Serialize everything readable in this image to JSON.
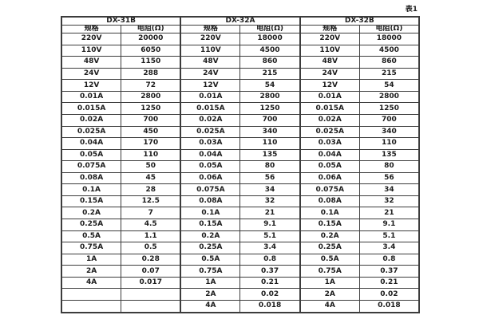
{
  "caption": "表1",
  "table": {
    "groups": [
      {
        "name": "DX-31B",
        "col1": "规格",
        "col2": "电阻(Ω)"
      },
      {
        "name": "DX-32A",
        "col1": "规格",
        "col2": "电阻(Ω)"
      },
      {
        "name": "DX-32B",
        "col1": "规格",
        "col2": "电阻(Ω)"
      }
    ],
    "rows": [
      [
        "220V",
        "20000",
        "220V",
        "18000",
        "220V",
        "18000"
      ],
      [
        "110V",
        "6050",
        "110V",
        "4500",
        "110V",
        "4500"
      ],
      [
        "48V",
        "1150",
        "48V",
        "860",
        "48V",
        "860"
      ],
      [
        "24V",
        "288",
        "24V",
        "215",
        "24V",
        "215"
      ],
      [
        "12V",
        "72",
        "12V",
        "54",
        "12V",
        "54"
      ],
      [
        "0.01A",
        "2800",
        "0.01A",
        "2800",
        "0.01A",
        "2800"
      ],
      [
        "0.015A",
        "1250",
        "0.015A",
        "1250",
        "0.015A",
        "1250"
      ],
      [
        "0.02A",
        "700",
        "0.02A",
        "700",
        "0.02A",
        "700"
      ],
      [
        "0.025A",
        "450",
        "0.025A",
        "340",
        "0.025A",
        "340"
      ],
      [
        "0.04A",
        "170",
        "0.03A",
        "110",
        "0.03A",
        "110"
      ],
      [
        "0.05A",
        "110",
        "0.04A",
        "135",
        "0.04A",
        "135"
      ],
      [
        "0.075A",
        "50",
        "0.05A",
        "80",
        "0.05A",
        "80"
      ],
      [
        "0.08A",
        "45",
        "0.06A",
        "56",
        "0.06A",
        "56"
      ],
      [
        "0.1A",
        "28",
        "0.075A",
        "34",
        "0.075A",
        "34"
      ],
      [
        "0.15A",
        "12.5",
        "0.08A",
        "32",
        "0.08A",
        "32"
      ],
      [
        "0.2A",
        "7",
        "0.1A",
        "21",
        "0.1A",
        "21"
      ],
      [
        "0.25A",
        "4.5",
        "0.15A",
        "9.1",
        "0.15A",
        "9.1"
      ],
      [
        "0.5A",
        "1.1",
        "0.2A",
        "5.1",
        "0.2A",
        "5.1"
      ],
      [
        "0.75A",
        "0.5",
        "0.25A",
        "3.4",
        "0.25A",
        "3.4"
      ],
      [
        "1A",
        "0.28",
        "0.5A",
        "0.8",
        "0.5A",
        "0.8"
      ],
      [
        "2A",
        "0.07",
        "0.75A",
        "0.37",
        "0.75A",
        "0.37"
      ],
      [
        "4A",
        "0.017",
        "1A",
        "0.21",
        "1A",
        "0.21"
      ],
      [
        "",
        "",
        "2A",
        "0.02",
        "2A",
        "0.02"
      ],
      [
        "",
        "",
        "4A",
        "0.018",
        "4A",
        "0.018"
      ]
    ],
    "colors": {
      "border": "#3c3c3c",
      "text": "#1c1c1c",
      "background": "#ffffff"
    }
  }
}
